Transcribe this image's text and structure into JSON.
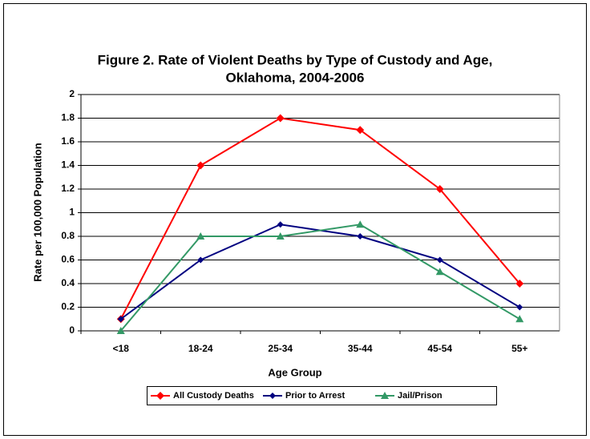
{
  "chart_data": {
    "type": "line",
    "title": [
      "Figure 2. Rate of Violent Deaths by Type of Custody and Age,",
      "Oklahoma, 2004-2006"
    ],
    "x_label": "Age Group",
    "y_label": "Rate per 100,000 Population",
    "categories": [
      "<18",
      "18-24",
      "25-34",
      "35-44",
      "45-54",
      "55+"
    ],
    "series": [
      {
        "name": "All Custody Deaths",
        "color": "#ff0000",
        "marker": "diamond",
        "values": [
          0.1,
          1.4,
          1.8,
          1.7,
          1.2,
          0.4
        ]
      },
      {
        "name": "Prior to Arrest",
        "color": "#000080",
        "marker": "diamond",
        "values": [
          0.1,
          0.6,
          0.9,
          0.8,
          0.6,
          0.2
        ]
      },
      {
        "name": "Jail/Prison",
        "color": "#339966",
        "marker": "triangle",
        "values": [
          0,
          0.8,
          0.8,
          0.9,
          0.5,
          0.1
        ]
      }
    ],
    "ylim": [
      0,
      2
    ],
    "yticks": [
      0,
      0.2,
      0.4,
      0.6,
      0.8,
      1,
      1.2,
      1.4,
      1.6,
      1.8,
      2
    ],
    "grid": true,
    "legend": "bottom"
  }
}
